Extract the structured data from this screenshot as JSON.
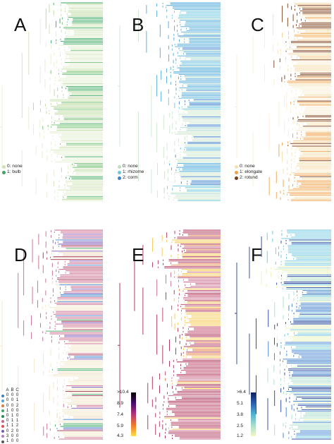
{
  "panels": [
    {
      "id": "A",
      "label": "A",
      "legend": [
        {
          "text": "0: none",
          "color": "#cfe3b4"
        },
        {
          "text": "1: bulb",
          "color": "#3aa860"
        }
      ],
      "palette": [
        "#e3efd2",
        "#cfe3b4",
        "#b9d99a",
        "#6fbf6f",
        "#3aa860"
      ]
    },
    {
      "id": "B",
      "label": "B",
      "legend": [
        {
          "text": "0: none",
          "color": "#bfe0bf"
        },
        {
          "text": "1: rhizome",
          "color": "#6bc6de"
        },
        {
          "text": "2: corm",
          "color": "#3e7fcc"
        }
      ],
      "palette": [
        "#cde7cf",
        "#a9d8d0",
        "#6bc6de",
        "#4fa9d8",
        "#3e7fcc"
      ]
    },
    {
      "id": "C",
      "label": "C",
      "legend": [
        {
          "text": "0: none",
          "color": "#f7dfb0"
        },
        {
          "text": "1: elongate",
          "color": "#f0a14a"
        },
        {
          "text": "2: rotund",
          "color": "#7a3b18"
        }
      ],
      "palette": [
        "#fbeed2",
        "#f7dfb0",
        "#f3c98a",
        "#f0a14a",
        "#7a3b18"
      ]
    },
    {
      "id": "D",
      "label": "D",
      "palette": [
        "#f3e7c9",
        "#ead6b6",
        "#c9668a",
        "#9e2f4a",
        "#7b57b8",
        "#3aa860",
        "#3e7fcc"
      ]
    },
    {
      "id": "E",
      "label": "E",
      "palette": [
        "#a8294f",
        "#b83a5e",
        "#c9668a",
        "#e07a3a",
        "#f5c64a"
      ]
    },
    {
      "id": "F",
      "label": "F",
      "palette": [
        "#1f3f98",
        "#3e7fcc",
        "#6bc6de",
        "#a9ddc9",
        "#e9f3b8"
      ]
    }
  ],
  "colorbar_E": {
    "ticks": [
      ">10.4",
      "8.9",
      "7.4",
      "5.9",
      "4.3"
    ]
  },
  "colorbar_F": {
    "ticks": [
      ">6.4",
      "5.1",
      "3.8",
      "2.5",
      "1.2"
    ]
  },
  "codes_table": {
    "header": [
      "A",
      "B",
      "C"
    ],
    "rows": [
      {
        "color": "#3e7fcc",
        "values": [
          "0",
          "0",
          "0"
        ]
      },
      {
        "color": "#5aa0d8",
        "values": [
          "0",
          "0",
          "1"
        ]
      },
      {
        "color": "#e07a3a",
        "values": [
          "0",
          "0",
          "2"
        ]
      },
      {
        "color": "#3aa860",
        "values": [
          "1",
          "0",
          "0"
        ]
      },
      {
        "color": "#2e8b57",
        "values": [
          "0",
          "1",
          "0"
        ]
      },
      {
        "color": "#c9668a",
        "values": [
          "0",
          "1",
          "1"
        ]
      },
      {
        "color": "#e05050",
        "values": [
          "1",
          "1",
          "2"
        ]
      },
      {
        "color": "#7b57b8",
        "values": [
          "0",
          "2",
          "0"
        ]
      },
      {
        "color": "#b77ac9",
        "values": [
          "3",
          "0",
          "0"
        ]
      },
      {
        "color": "#555555",
        "values": [
          "1",
          "0",
          "0"
        ]
      }
    ]
  }
}
